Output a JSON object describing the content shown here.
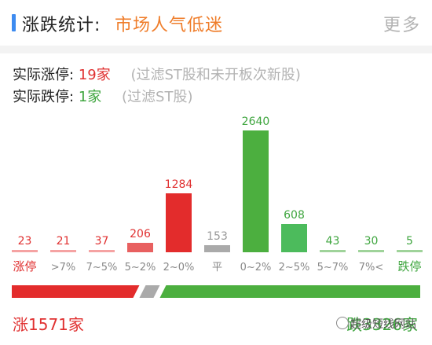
{
  "header": {
    "title": "涨跌统计:",
    "status": "市场人气低迷",
    "more": "更多",
    "accent_color": "#3d8bf0",
    "status_color": "#ef7d2a"
  },
  "stats": {
    "limit_up_label": "实际涨停:",
    "limit_up_value": "19家",
    "limit_up_note": "(过滤ST股和未开板次新股)",
    "limit_down_label": "实际跌停:",
    "limit_down_value": "1家",
    "limit_down_note": "(过滤ST股)"
  },
  "chart_data": {
    "type": "bar",
    "categories": [
      "涨停",
      ">7%",
      "7~5%",
      "5~2%",
      "2~0%",
      "平",
      "0~2%",
      "2~5%",
      "5~7%",
      "7%<",
      "跌停"
    ],
    "values": [
      23,
      21,
      37,
      206,
      1284,
      153,
      2640,
      608,
      43,
      30,
      5
    ],
    "value_labels": [
      "23",
      "21",
      "37",
      "206",
      "1284",
      "153",
      "2640",
      "608",
      "43",
      "30",
      "5"
    ],
    "colors": {
      "up_strong": "#e32c2c",
      "up_light": "#f5a3a3",
      "flat": "#aaaaaa",
      "down_strong": "#4caf3f",
      "down_light": "#9fd39a"
    }
  },
  "ratio_bar": {
    "up_count": 1571,
    "flat_count": 153,
    "down_count": 3326,
    "up_color": "#e32c2c",
    "flat_color": "#aaaaaa",
    "down_color": "#4caf3f"
  },
  "footer": {
    "up_text": "涨1571家",
    "down_text": "跌3326家"
  },
  "watermark": {
    "text": "超级短线网站"
  }
}
